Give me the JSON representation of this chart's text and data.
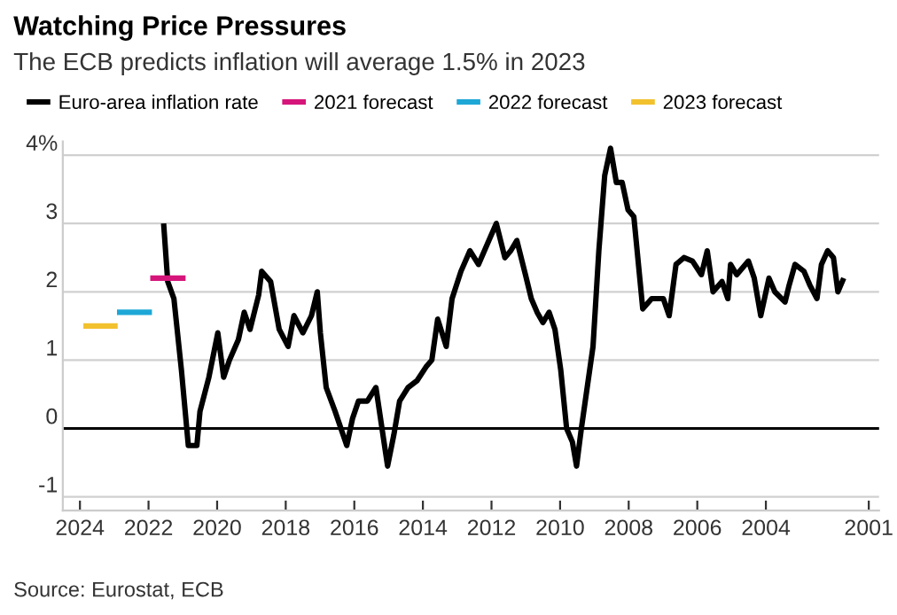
{
  "chart_data": {
    "type": "line",
    "title": "Watching Price Pressures",
    "subtitle": "The ECB predicts inflation will average 1.5% in 2023",
    "xlim": [
      2024.5,
      2000.7
    ],
    "ylim": [
      -1.2,
      4.2
    ],
    "xticks": [
      2024,
      2022,
      2020,
      2018,
      2016,
      2014,
      2012,
      2010,
      2008,
      2006,
      2004,
      2001
    ],
    "yticks": [
      {
        "value": 4,
        "label": "4%"
      },
      3,
      2,
      1,
      0,
      -1
    ],
    "grid": "y",
    "legend": "top",
    "line_style": "solid",
    "marker": "none",
    "ref_lines": [
      {
        "axis": "y",
        "value": 0,
        "label": null,
        "color": "#000000"
      }
    ],
    "annotations": [
      "Source: Eurostat, ECB"
    ],
    "series": [
      {
        "name": "Euro-area inflation rate",
        "color": "#000000",
        "x": [
          2001.73,
          2001.9,
          2002.03,
          2002.2,
          2002.38,
          2002.51,
          2002.72,
          2002.89,
          2003.15,
          2003.32,
          2003.44,
          2003.74,
          2003.91,
          2004.15,
          2004.34,
          2004.51,
          2004.68,
          2004.85,
          2005.03,
          2005.11,
          2005.28,
          2005.54,
          2005.71,
          2005.88,
          2006.14,
          2006.39,
          2006.62,
          2006.82,
          2006.99,
          2007.33,
          2007.59,
          2007.85,
          2008.02,
          2008.19,
          2008.36,
          2008.53,
          2008.7,
          2008.87,
          2009.04,
          2009.21,
          2009.38,
          2009.52,
          2009.64,
          2009.81,
          2009.98,
          2010.15,
          2010.32,
          2010.5,
          2010.67,
          2010.84,
          2011.01,
          2011.26,
          2011.44,
          2011.61,
          2011.86,
          2012.12,
          2012.38,
          2012.63,
          2012.89,
          2013.15,
          2013.32,
          2013.57,
          2013.74,
          2013.91,
          2014.17,
          2014.43,
          2014.68,
          2014.85,
          2015.03,
          2015.37,
          2015.62,
          2015.88,
          2016.05,
          2016.22,
          2016.39,
          2016.56,
          2016.82,
          2016.99,
          2017.08,
          2017.25,
          2017.5,
          2017.76,
          2017.93,
          2018.19,
          2018.44,
          2018.7,
          2018.79,
          2019.04,
          2019.21,
          2019.38,
          2019.64,
          2019.81,
          2019.98,
          2020.24,
          2020.5,
          2020.59,
          2020.84,
          2021.04,
          2021.26,
          2021.44,
          2021.56
        ],
        "values": [
          2.2,
          2.0,
          2.5,
          2.6,
          2.4,
          1.9,
          2.1,
          2.3,
          2.4,
          2.1,
          1.85,
          2.0,
          2.2,
          1.65,
          2.2,
          2.45,
          2.35,
          2.25,
          2.4,
          1.9,
          2.15,
          2.0,
          2.6,
          2.25,
          2.45,
          2.5,
          2.4,
          1.65,
          1.9,
          1.9,
          1.75,
          3.1,
          3.2,
          3.6,
          3.6,
          4.1,
          3.7,
          2.6,
          1.2,
          0.6,
          0.0,
          -0.55,
          -0.2,
          0.0,
          0.85,
          1.45,
          1.7,
          1.55,
          1.7,
          1.9,
          2.25,
          2.75,
          2.6,
          2.5,
          3.0,
          2.7,
          2.4,
          2.6,
          2.3,
          1.9,
          1.2,
          1.6,
          1.0,
          0.9,
          0.7,
          0.6,
          0.4,
          -0.1,
          -0.55,
          0.6,
          0.4,
          0.4,
          0.15,
          -0.25,
          0.0,
          0.25,
          0.6,
          1.4,
          2.0,
          1.65,
          1.4,
          1.65,
          1.2,
          1.45,
          2.15,
          2.3,
          1.95,
          1.45,
          1.7,
          1.3,
          1.0,
          0.75,
          1.4,
          0.75,
          0.25,
          -0.25,
          -0.25,
          0.85,
          1.9,
          2.15,
          3.0
        ]
      },
      {
        "name": "2021 forecast",
        "color": "#d6157a",
        "x": [
          2020.92,
          2021.95
        ],
        "values": [
          2.2,
          2.2
        ]
      },
      {
        "name": "2022 forecast",
        "color": "#1ea7d6",
        "x": [
          2021.9,
          2022.92
        ],
        "values": [
          1.7,
          1.7
        ]
      },
      {
        "name": "2023 forecast",
        "color": "#f2c12e",
        "x": [
          2022.9,
          2023.9
        ],
        "values": [
          1.5,
          1.5
        ]
      }
    ]
  }
}
